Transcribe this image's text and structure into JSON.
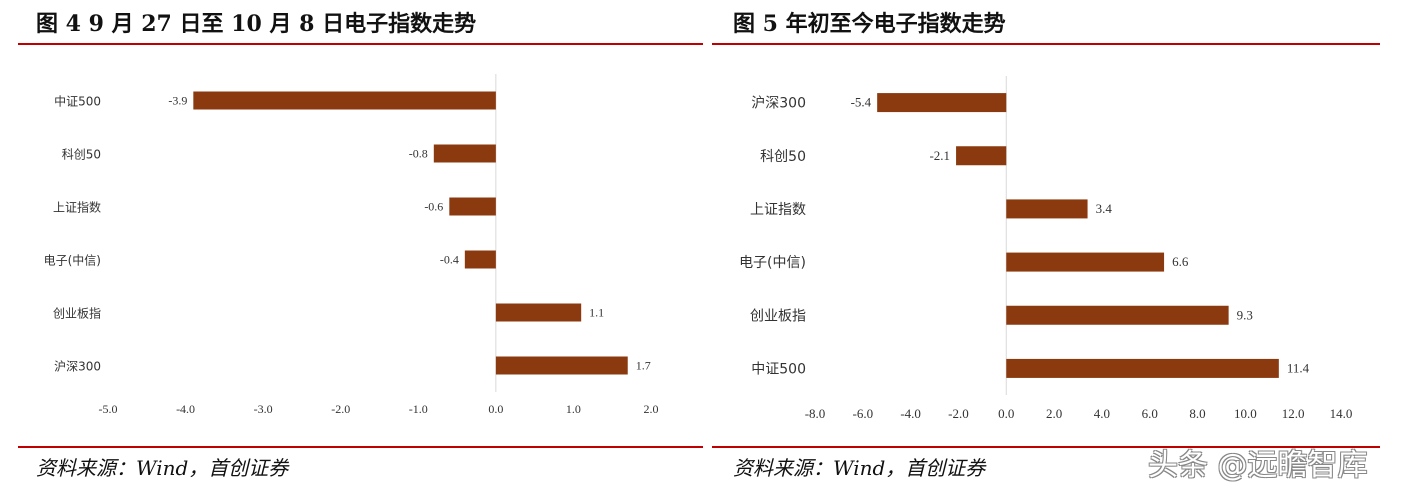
{
  "left_panel": {
    "title": "图 4 9 月 27 日至 10 月 8 日电子指数走势",
    "source": "资料来源：Wind，首创证券"
  },
  "right_panel": {
    "title": "图 5 年初至今电子指数走势",
    "source": "资料来源：Wind，首创证券"
  },
  "watermark": "头条 @远瞻智库",
  "colors": {
    "bar": "#8b3a0f",
    "rule": "#c00000",
    "axis": "#d9d9d9"
  },
  "chart_data": [
    {
      "type": "bar",
      "orientation": "horizontal",
      "title": "图 4 9 月 27 日至 10 月 8 日电子指数走势",
      "categories": [
        "中证500",
        "科创50",
        "上证指数",
        "电子(中信)",
        "创业板指",
        "沪深300"
      ],
      "values": [
        -3.9,
        -0.8,
        -0.6,
        -0.4,
        1.1,
        1.7
      ],
      "value_labels": [
        "-3.9",
        "-0.8",
        "-0.6",
        "-0.4",
        "1.1",
        "1.7"
      ],
      "xlim": [
        -5.0,
        2.0
      ],
      "ticks": [
        -5.0,
        -4.0,
        -3.0,
        -2.0,
        -1.0,
        0.0,
        1.0,
        2.0
      ],
      "tick_labels": [
        "-5.0",
        "-4.0",
        "-3.0",
        "-2.0",
        "-1.0",
        "0.0",
        "1.0",
        "2.0"
      ],
      "grid": false,
      "legend": "none"
    },
    {
      "type": "bar",
      "orientation": "horizontal",
      "title": "图 5 年初至今电子指数走势",
      "categories": [
        "沪深300",
        "科创50",
        "上证指数",
        "电子(中信)",
        "创业板指",
        "中证500"
      ],
      "values": [
        -5.4,
        -2.1,
        3.4,
        6.6,
        9.3,
        11.4
      ],
      "value_labels": [
        "-5.4",
        "-2.1",
        "3.4",
        "6.6",
        "9.3",
        "11.4"
      ],
      "xlim": [
        -8.0,
        14.0
      ],
      "ticks": [
        -8.0,
        -6.0,
        -4.0,
        -2.0,
        0.0,
        2.0,
        4.0,
        6.0,
        8.0,
        10.0,
        12.0,
        14.0
      ],
      "tick_labels": [
        "-8.0",
        "-6.0",
        "-4.0",
        "-2.0",
        "0.0",
        "2.0",
        "4.0",
        "6.0",
        "8.0",
        "10.0",
        "12.0",
        "14.0"
      ],
      "grid": false,
      "legend": "none"
    }
  ]
}
